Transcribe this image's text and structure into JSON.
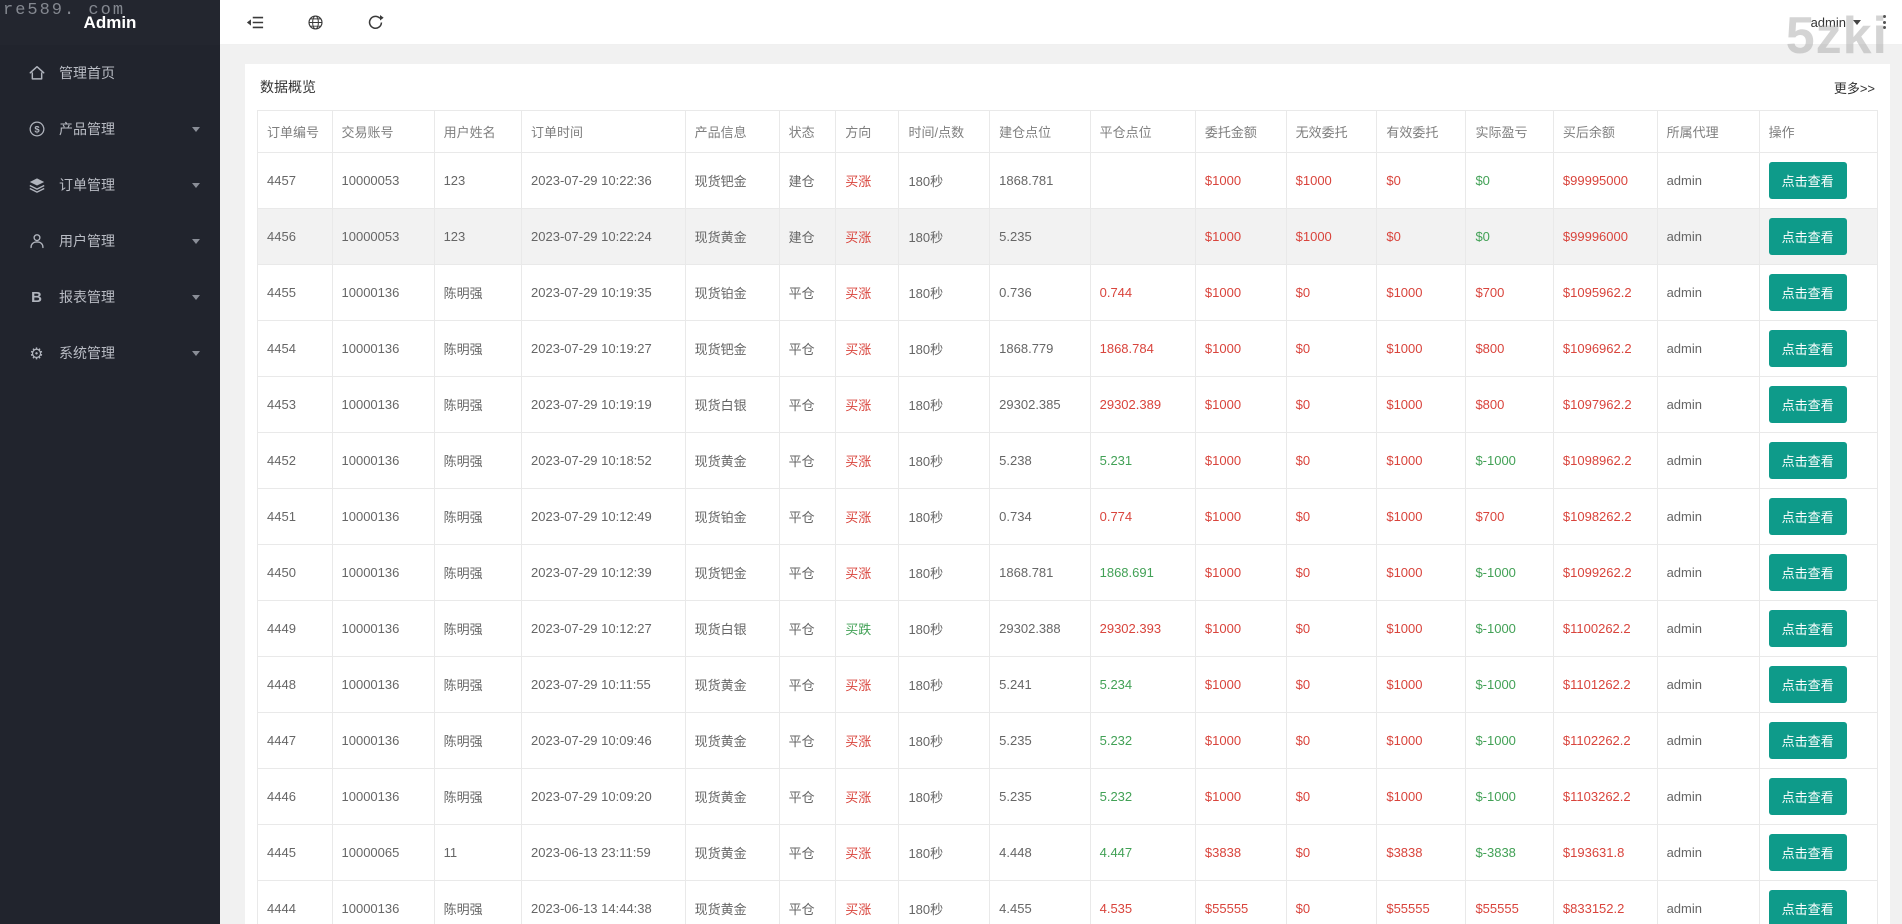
{
  "watermarks": {
    "top_left": "re589. com",
    "top_right": "5zki"
  },
  "colors": {
    "red": "#d9443c",
    "green": "#42a156",
    "teal": "#0e9b8a"
  },
  "sidebar": {
    "title": "Admin",
    "items": [
      {
        "key": "home",
        "label": "管理首页",
        "icon": "home-icon",
        "expandable": false
      },
      {
        "key": "products",
        "label": "产品管理",
        "icon": "product-icon",
        "expandable": true
      },
      {
        "key": "orders",
        "label": "订单管理",
        "icon": "orders-icon",
        "expandable": true
      },
      {
        "key": "users",
        "label": "用户管理",
        "icon": "users-icon",
        "expandable": true
      },
      {
        "key": "reports",
        "label": "报表管理",
        "icon": "reports-icon",
        "expandable": true
      },
      {
        "key": "system",
        "label": "系统管理",
        "icon": "settings-icon",
        "expandable": true
      }
    ]
  },
  "topbar": {
    "user": "admin"
  },
  "overview": {
    "title": "数据概览",
    "more": "更多>>"
  },
  "table": {
    "headers": [
      "订单编号",
      "交易账号",
      "用户姓名",
      "订单时间",
      "产品信息",
      "状态",
      "方向",
      "时间/点数",
      "建仓点位",
      "平仓点位",
      "委托金额",
      "无效委托",
      "有效委托",
      "实际盈亏",
      "买后余额",
      "所属代理",
      "操作"
    ],
    "action_label": "点击查看",
    "rows": [
      {
        "id": "4457",
        "account": "10000053",
        "name": "123",
        "time": "2023-07-29 10:22:36",
        "product": "现货钯金",
        "status": "建仓",
        "direction": "买涨",
        "direction_color": "red",
        "duration": "180秒",
        "open": "1868.781",
        "close": "",
        "close_color": "",
        "amount": "$1000",
        "invalid": "$1000",
        "valid": "$0",
        "profit": "$0",
        "profit_color": "green",
        "balance": "$99995000",
        "agent": "admin",
        "highlight": false
      },
      {
        "id": "4456",
        "account": "10000053",
        "name": "123",
        "time": "2023-07-29 10:22:24",
        "product": "现货黄金",
        "status": "建仓",
        "direction": "买涨",
        "direction_color": "red",
        "duration": "180秒",
        "open": "5.235",
        "close": "",
        "close_color": "",
        "amount": "$1000",
        "invalid": "$1000",
        "valid": "$0",
        "profit": "$0",
        "profit_color": "green",
        "balance": "$99996000",
        "agent": "admin",
        "highlight": true
      },
      {
        "id": "4455",
        "account": "10000136",
        "name": "陈明强",
        "time": "2023-07-29 10:19:35",
        "product": "现货铂金",
        "status": "平仓",
        "direction": "买涨",
        "direction_color": "red",
        "duration": "180秒",
        "open": "0.736",
        "close": "0.744",
        "close_color": "red",
        "amount": "$1000",
        "invalid": "$0",
        "valid": "$1000",
        "profit": "$700",
        "profit_color": "red",
        "balance": "$1095962.2",
        "agent": "admin",
        "highlight": false
      },
      {
        "id": "4454",
        "account": "10000136",
        "name": "陈明强",
        "time": "2023-07-29 10:19:27",
        "product": "现货钯金",
        "status": "平仓",
        "direction": "买涨",
        "direction_color": "red",
        "duration": "180秒",
        "open": "1868.779",
        "close": "1868.784",
        "close_color": "red",
        "amount": "$1000",
        "invalid": "$0",
        "valid": "$1000",
        "profit": "$800",
        "profit_color": "red",
        "balance": "$1096962.2",
        "agent": "admin",
        "highlight": false
      },
      {
        "id": "4453",
        "account": "10000136",
        "name": "陈明强",
        "time": "2023-07-29 10:19:19",
        "product": "现货白银",
        "status": "平仓",
        "direction": "买涨",
        "direction_color": "red",
        "duration": "180秒",
        "open": "29302.385",
        "close": "29302.389",
        "close_color": "red",
        "amount": "$1000",
        "invalid": "$0",
        "valid": "$1000",
        "profit": "$800",
        "profit_color": "red",
        "balance": "$1097962.2",
        "agent": "admin",
        "highlight": false
      },
      {
        "id": "4452",
        "account": "10000136",
        "name": "陈明强",
        "time": "2023-07-29 10:18:52",
        "product": "现货黄金",
        "status": "平仓",
        "direction": "买涨",
        "direction_color": "red",
        "duration": "180秒",
        "open": "5.238",
        "close": "5.231",
        "close_color": "green",
        "amount": "$1000",
        "invalid": "$0",
        "valid": "$1000",
        "profit": "$-1000",
        "profit_color": "green",
        "balance": "$1098962.2",
        "agent": "admin",
        "highlight": false
      },
      {
        "id": "4451",
        "account": "10000136",
        "name": "陈明强",
        "time": "2023-07-29 10:12:49",
        "product": "现货铂金",
        "status": "平仓",
        "direction": "买涨",
        "direction_color": "red",
        "duration": "180秒",
        "open": "0.734",
        "close": "0.774",
        "close_color": "red",
        "amount": "$1000",
        "invalid": "$0",
        "valid": "$1000",
        "profit": "$700",
        "profit_color": "red",
        "balance": "$1098262.2",
        "agent": "admin",
        "highlight": false
      },
      {
        "id": "4450",
        "account": "10000136",
        "name": "陈明强",
        "time": "2023-07-29 10:12:39",
        "product": "现货钯金",
        "status": "平仓",
        "direction": "买涨",
        "direction_color": "red",
        "duration": "180秒",
        "open": "1868.781",
        "close": "1868.691",
        "close_color": "green",
        "amount": "$1000",
        "invalid": "$0",
        "valid": "$1000",
        "profit": "$-1000",
        "profit_color": "green",
        "balance": "$1099262.2",
        "agent": "admin",
        "highlight": false
      },
      {
        "id": "4449",
        "account": "10000136",
        "name": "陈明强",
        "time": "2023-07-29 10:12:27",
        "product": "现货白银",
        "status": "平仓",
        "direction": "买跌",
        "direction_color": "green",
        "duration": "180秒",
        "open": "29302.388",
        "close": "29302.393",
        "close_color": "red",
        "amount": "$1000",
        "invalid": "$0",
        "valid": "$1000",
        "profit": "$-1000",
        "profit_color": "green",
        "balance": "$1100262.2",
        "agent": "admin",
        "highlight": false
      },
      {
        "id": "4448",
        "account": "10000136",
        "name": "陈明强",
        "time": "2023-07-29 10:11:55",
        "product": "现货黄金",
        "status": "平仓",
        "direction": "买涨",
        "direction_color": "red",
        "duration": "180秒",
        "open": "5.241",
        "close": "5.234",
        "close_color": "green",
        "amount": "$1000",
        "invalid": "$0",
        "valid": "$1000",
        "profit": "$-1000",
        "profit_color": "green",
        "balance": "$1101262.2",
        "agent": "admin",
        "highlight": false
      },
      {
        "id": "4447",
        "account": "10000136",
        "name": "陈明强",
        "time": "2023-07-29 10:09:46",
        "product": "现货黄金",
        "status": "平仓",
        "direction": "买涨",
        "direction_color": "red",
        "duration": "180秒",
        "open": "5.235",
        "close": "5.232",
        "close_color": "green",
        "amount": "$1000",
        "invalid": "$0",
        "valid": "$1000",
        "profit": "$-1000",
        "profit_color": "green",
        "balance": "$1102262.2",
        "agent": "admin",
        "highlight": false
      },
      {
        "id": "4446",
        "account": "10000136",
        "name": "陈明强",
        "time": "2023-07-29 10:09:20",
        "product": "现货黄金",
        "status": "平仓",
        "direction": "买涨",
        "direction_color": "red",
        "duration": "180秒",
        "open": "5.235",
        "close": "5.232",
        "close_color": "green",
        "amount": "$1000",
        "invalid": "$0",
        "valid": "$1000",
        "profit": "$-1000",
        "profit_color": "green",
        "balance": "$1103262.2",
        "agent": "admin",
        "highlight": false
      },
      {
        "id": "4445",
        "account": "10000065",
        "name": "11",
        "time": "2023-06-13 23:11:59",
        "product": "现货黄金",
        "status": "平仓",
        "direction": "买涨",
        "direction_color": "red",
        "duration": "180秒",
        "open": "4.448",
        "close": "4.447",
        "close_color": "green",
        "amount": "$3838",
        "invalid": "$0",
        "valid": "$3838",
        "profit": "$-3838",
        "profit_color": "green",
        "balance": "$193631.8",
        "agent": "admin",
        "highlight": false
      },
      {
        "id": "4444",
        "account": "10000136",
        "name": "陈明强",
        "time": "2023-06-13 14:44:38",
        "product": "现货黄金",
        "status": "平仓",
        "direction": "买涨",
        "direction_color": "red",
        "duration": "180秒",
        "open": "4.455",
        "close": "4.535",
        "close_color": "red",
        "amount": "$55555",
        "invalid": "$0",
        "valid": "$55555",
        "profit": "$55555",
        "profit_color": "red",
        "balance": "$833152.2",
        "agent": "admin",
        "highlight": false
      }
    ]
  }
}
